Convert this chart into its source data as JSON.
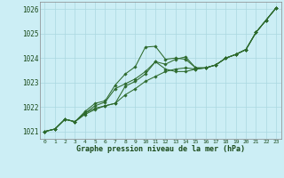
{
  "xlabel": "Graphe pression niveau de la mer (hPa)",
  "xlim": [
    -0.5,
    23.5
  ],
  "ylim": [
    1020.7,
    1026.3
  ],
  "yticks": [
    1021,
    1022,
    1023,
    1024,
    1025,
    1026
  ],
  "xticks": [
    0,
    1,
    2,
    3,
    4,
    5,
    6,
    7,
    8,
    9,
    10,
    11,
    12,
    13,
    14,
    15,
    16,
    17,
    18,
    19,
    20,
    21,
    22,
    23
  ],
  "bg_color": "#cceef5",
  "grid_color": "#aad8e0",
  "line_color": "#2d6a2d",
  "series": [
    [
      1021.0,
      1021.1,
      1021.5,
      1021.4,
      1021.7,
      1021.9,
      1022.05,
      1022.15,
      1022.5,
      1022.75,
      1023.05,
      1023.25,
      1023.45,
      1023.55,
      1023.6,
      1023.55,
      1023.6,
      1023.72,
      1024.0,
      1024.15,
      1024.35,
      1025.05,
      1025.55,
      1026.05
    ],
    [
      1021.0,
      1021.1,
      1021.5,
      1021.4,
      1021.75,
      1022.05,
      1022.2,
      1022.75,
      1022.95,
      1023.15,
      1023.45,
      1023.85,
      1023.55,
      1023.45,
      1023.45,
      1023.55,
      1023.6,
      1023.72,
      1024.0,
      1024.15,
      1024.35,
      1025.05,
      1025.55,
      1026.05
    ],
    [
      1021.0,
      1021.1,
      1021.5,
      1021.4,
      1021.82,
      1022.15,
      1022.25,
      1022.9,
      1023.35,
      1023.65,
      1024.45,
      1024.48,
      1023.95,
      1024.0,
      1023.95,
      1023.6,
      1023.6,
      1023.72,
      1024.0,
      1024.15,
      1024.35,
      1025.05,
      1025.55,
      1026.05
    ],
    [
      1021.0,
      1021.1,
      1021.5,
      1021.4,
      1021.75,
      1021.95,
      1022.05,
      1022.15,
      1022.85,
      1023.05,
      1023.35,
      1023.85,
      1023.75,
      1023.95,
      1024.05,
      1023.6,
      1023.6,
      1023.72,
      1024.0,
      1024.15,
      1024.35,
      1025.05,
      1025.55,
      1026.05
    ]
  ]
}
